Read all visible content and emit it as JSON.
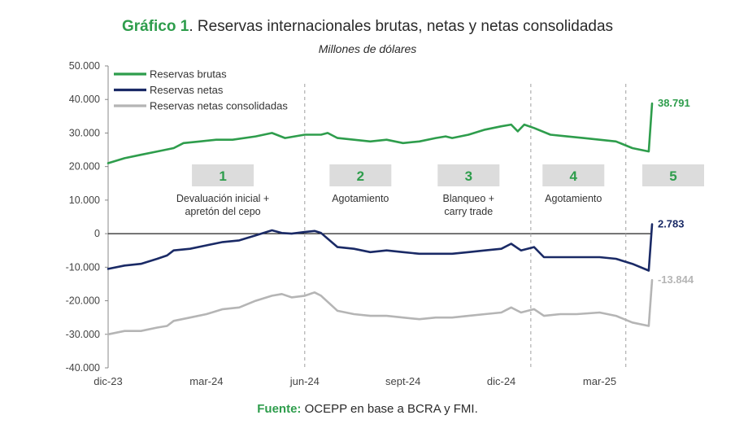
{
  "header": {
    "title_lead": "Gráfico 1",
    "title_rest": ". Reservas internacionales brutas, netas y netas consolidadas",
    "subtitle": "Millones de dólares"
  },
  "footer": {
    "source_label": "Fuente:",
    "source_text": " OCEPP en base a BCRA y FMI."
  },
  "colors": {
    "brutas": "#2e9d4c",
    "netas": "#1a2a66",
    "consolidadas": "#b5b5b5",
    "box": "#dcdcdc",
    "axis": "#888888"
  },
  "chart_data": {
    "type": "line",
    "ylim": [
      -40000,
      50000
    ],
    "yticks": [
      "50.000",
      "40.000",
      "30.000",
      "20.000",
      "10.000",
      "0",
      "-10.000",
      "-20.000",
      "-30.000",
      "-40.000"
    ],
    "ytick_values": [
      50000,
      40000,
      30000,
      20000,
      10000,
      0,
      -10000,
      -20000,
      -30000,
      -40000
    ],
    "xtick_labels": [
      "dic-23",
      "mar-24",
      "jun-24",
      "sept-24",
      "dic-24",
      "mar-25"
    ],
    "xtick_months": [
      0,
      3,
      6,
      9,
      12,
      15
    ],
    "x_range_months": [
      0,
      16.6
    ],
    "phase_boundaries_months": [
      6,
      12.9,
      15.8
    ],
    "phases": [
      {
        "number": "1",
        "label_lines": [
          "Devaluación inicial +",
          "apretón del cepo"
        ],
        "center_month": 3.5
      },
      {
        "number": "2",
        "label_lines": [
          "Agotamiento"
        ],
        "center_month": 7.7
      },
      {
        "number": "3",
        "label_lines": [
          "Blanqueo +",
          "carry trade"
        ],
        "center_month": 11
      },
      {
        "number": "4",
        "label_lines": [
          "Agotamiento"
        ],
        "center_month": 14.2
      },
      {
        "number": "5",
        "label_lines": [],
        "center_month": 17.5
      }
    ],
    "series": [
      {
        "name": "Reservas brutas",
        "key": "brutas",
        "end_label": "38.791",
        "points": [
          [
            0,
            21000
          ],
          [
            0.5,
            22500
          ],
          [
            1,
            23500
          ],
          [
            1.5,
            24500
          ],
          [
            2,
            25500
          ],
          [
            2.3,
            27000
          ],
          [
            2.8,
            27500
          ],
          [
            3.3,
            28000
          ],
          [
            3.8,
            28000
          ],
          [
            4.5,
            29000
          ],
          [
            5,
            30000
          ],
          [
            5.4,
            28500
          ],
          [
            6,
            29500
          ],
          [
            6.5,
            29500
          ],
          [
            6.7,
            30000
          ],
          [
            7,
            28500
          ],
          [
            7.5,
            28000
          ],
          [
            8,
            27500
          ],
          [
            8.5,
            28000
          ],
          [
            9,
            27000
          ],
          [
            9.5,
            27500
          ],
          [
            10,
            28500
          ],
          [
            10.3,
            29000
          ],
          [
            10.5,
            28500
          ],
          [
            11,
            29500
          ],
          [
            11.5,
            31000
          ],
          [
            12,
            32000
          ],
          [
            12.3,
            32500
          ],
          [
            12.5,
            30500
          ],
          [
            12.7,
            32500
          ],
          [
            13,
            31500
          ],
          [
            13.5,
            29500
          ],
          [
            14,
            29000
          ],
          [
            14.5,
            28500
          ],
          [
            15,
            28000
          ],
          [
            15.5,
            27500
          ],
          [
            16,
            25500
          ],
          [
            16.5,
            24500
          ],
          [
            16.6,
            38791
          ]
        ]
      },
      {
        "name": "Reservas netas",
        "key": "netas",
        "end_label": "2.783",
        "points": [
          [
            0,
            -10500
          ],
          [
            0.5,
            -9500
          ],
          [
            1,
            -9000
          ],
          [
            1.5,
            -7500
          ],
          [
            1.8,
            -6500
          ],
          [
            2,
            -5000
          ],
          [
            2.5,
            -4500
          ],
          [
            3,
            -3500
          ],
          [
            3.5,
            -2500
          ],
          [
            4,
            -2000
          ],
          [
            4.5,
            -500
          ],
          [
            5,
            1000
          ],
          [
            5.3,
            200
          ],
          [
            5.6,
            0
          ],
          [
            6,
            500
          ],
          [
            6.3,
            800
          ],
          [
            6.5,
            200
          ],
          [
            7,
            -4000
          ],
          [
            7.5,
            -4500
          ],
          [
            8,
            -5500
          ],
          [
            8.5,
            -5000
          ],
          [
            9,
            -5500
          ],
          [
            9.5,
            -6000
          ],
          [
            10,
            -6000
          ],
          [
            10.5,
            -6000
          ],
          [
            11,
            -5500
          ],
          [
            11.5,
            -5000
          ],
          [
            12,
            -4500
          ],
          [
            12.3,
            -3000
          ],
          [
            12.6,
            -5000
          ],
          [
            13,
            -4000
          ],
          [
            13.3,
            -7000
          ],
          [
            13.8,
            -7000
          ],
          [
            14.3,
            -7000
          ],
          [
            15,
            -7000
          ],
          [
            15.5,
            -7500
          ],
          [
            16,
            -9000
          ],
          [
            16.5,
            -11000
          ],
          [
            16.6,
            2783
          ]
        ]
      },
      {
        "name": "Reservas netas consolidadas",
        "key": "consolidadas",
        "end_label": "-13.844",
        "points": [
          [
            0,
            -30000
          ],
          [
            0.5,
            -29000
          ],
          [
            1,
            -29000
          ],
          [
            1.5,
            -28000
          ],
          [
            1.8,
            -27500
          ],
          [
            2,
            -26000
          ],
          [
            2.5,
            -25000
          ],
          [
            3,
            -24000
          ],
          [
            3.5,
            -22500
          ],
          [
            4,
            -22000
          ],
          [
            4.5,
            -20000
          ],
          [
            5,
            -18500
          ],
          [
            5.3,
            -18000
          ],
          [
            5.6,
            -19000
          ],
          [
            6,
            -18500
          ],
          [
            6.3,
            -17500
          ],
          [
            6.5,
            -18500
          ],
          [
            7,
            -23000
          ],
          [
            7.5,
            -24000
          ],
          [
            8,
            -24500
          ],
          [
            8.5,
            -24500
          ],
          [
            9,
            -25000
          ],
          [
            9.5,
            -25500
          ],
          [
            10,
            -25000
          ],
          [
            10.5,
            -25000
          ],
          [
            11,
            -24500
          ],
          [
            11.5,
            -24000
          ],
          [
            12,
            -23500
          ],
          [
            12.3,
            -22000
          ],
          [
            12.6,
            -23500
          ],
          [
            13,
            -22500
          ],
          [
            13.3,
            -24500
          ],
          [
            13.8,
            -24000
          ],
          [
            14.3,
            -24000
          ],
          [
            15,
            -23500
          ],
          [
            15.5,
            -24500
          ],
          [
            16,
            -26500
          ],
          [
            16.5,
            -27500
          ],
          [
            16.6,
            -13844
          ]
        ]
      }
    ]
  }
}
